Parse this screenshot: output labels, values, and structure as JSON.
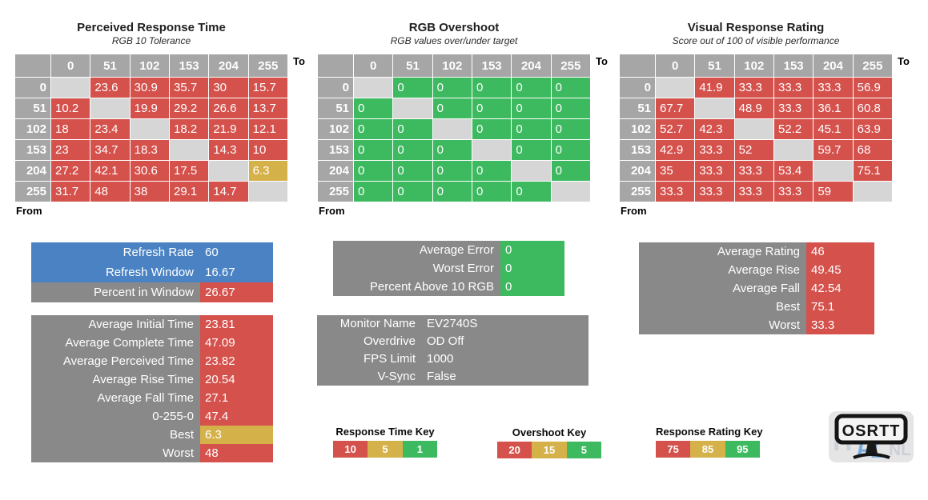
{
  "colors": {
    "red": "#d4514c",
    "yellow": "#d5b14a",
    "green": "#3dba5f",
    "blue": "#4a82c3",
    "header_gray": "#a6a6a6",
    "diagonal_gray": "#d6d6d6",
    "box_gray": "#898989"
  },
  "axis": {
    "to_label": "To",
    "from_label": "From",
    "levels": [
      "0",
      "51",
      "102",
      "153",
      "204",
      "255"
    ]
  },
  "matrices": [
    {
      "title": "Perceived Response Time",
      "subtitle": "RGB 10 Tolerance",
      "default_color": "red",
      "rows": [
        [
          "",
          "23.6",
          "30.9",
          "35.7",
          "30",
          "15.7"
        ],
        [
          "10.2",
          "",
          "19.9",
          "29.2",
          "26.6",
          "13.7"
        ],
        [
          "18",
          "23.4",
          "",
          "18.2",
          "21.9",
          "12.1"
        ],
        [
          "23",
          "34.7",
          "18.3",
          "",
          "14.3",
          "10"
        ],
        [
          "27.2",
          "42.1",
          "30.6",
          "17.5",
          "",
          "6.3"
        ],
        [
          "31.7",
          "48",
          "38",
          "29.1",
          "14.7",
          ""
        ]
      ],
      "cell_color_overrides": {
        "4,5": "yellow"
      }
    },
    {
      "title": "RGB Overshoot",
      "subtitle": "RGB values over/under target",
      "default_color": "green",
      "rows": [
        [
          "",
          "0",
          "0",
          "0",
          "0",
          "0"
        ],
        [
          "0",
          "",
          "0",
          "0",
          "0",
          "0"
        ],
        [
          "0",
          "0",
          "",
          "0",
          "0",
          "0"
        ],
        [
          "0",
          "0",
          "0",
          "",
          "0",
          "0"
        ],
        [
          "0",
          "0",
          "0",
          "0",
          "",
          "0"
        ],
        [
          "0",
          "0",
          "0",
          "0",
          "0",
          ""
        ]
      ],
      "cell_color_overrides": {}
    },
    {
      "title": "Visual Response Rating",
      "subtitle": "Score out of 100 of visible performance",
      "default_color": "red",
      "rows": [
        [
          "",
          "41.9",
          "33.3",
          "33.3",
          "33.3",
          "56.9"
        ],
        [
          "67.7",
          "",
          "48.9",
          "33.3",
          "36.1",
          "60.8"
        ],
        [
          "52.7",
          "42.3",
          "",
          "52.2",
          "45.1",
          "63.9"
        ],
        [
          "42.9",
          "33.3",
          "52",
          "",
          "59.7",
          "68"
        ],
        [
          "35",
          "33.3",
          "33.3",
          "53.4",
          "",
          "75.1"
        ],
        [
          "33.3",
          "33.3",
          "33.3",
          "33.3",
          "59",
          ""
        ]
      ],
      "cell_color_overrides": {}
    }
  ],
  "boxes": {
    "refresh": {
      "rows": [
        {
          "label": "Refresh Rate",
          "value": "60",
          "label_bg": "blue",
          "value_bg": "blue"
        },
        {
          "label": "Refresh Window",
          "value": "16.67",
          "label_bg": "blue",
          "value_bg": "blue"
        },
        {
          "label": "Percent in Window",
          "value": "26.67",
          "label_bg": "box_gray",
          "value_bg": "red"
        }
      ]
    },
    "averages": {
      "rows": [
        {
          "label": "Average Initial Time",
          "value": "23.81",
          "label_bg": "box_gray",
          "value_bg": "red"
        },
        {
          "label": "Average Complete Time",
          "value": "47.09",
          "label_bg": "box_gray",
          "value_bg": "red"
        },
        {
          "label": "Average Perceived Time",
          "value": "23.82",
          "label_bg": "box_gray",
          "value_bg": "red"
        },
        {
          "label": "Average Rise Time",
          "value": "20.54",
          "label_bg": "box_gray",
          "value_bg": "red"
        },
        {
          "label": "Average Fall Time",
          "value": "27.1",
          "label_bg": "box_gray",
          "value_bg": "red"
        },
        {
          "label": "0-255-0",
          "value": "47.4",
          "label_bg": "box_gray",
          "value_bg": "red"
        },
        {
          "label": "Best",
          "value": "6.3",
          "label_bg": "box_gray",
          "value_bg": "yellow"
        },
        {
          "label": "Worst",
          "value": "48",
          "label_bg": "box_gray",
          "value_bg": "red"
        }
      ]
    },
    "error": {
      "rows": [
        {
          "label": "Average Error",
          "value": "0",
          "label_bg": "box_gray",
          "value_bg": "green"
        },
        {
          "label": "Worst Error",
          "value": "0",
          "label_bg": "box_gray",
          "value_bg": "green"
        },
        {
          "label": "Percent Above 10 RGB",
          "value": "0",
          "label_bg": "box_gray",
          "value_bg": "green"
        }
      ]
    },
    "monitor": {
      "rows": [
        {
          "label": "Monitor Name",
          "value": "EV2740S",
          "label_bg": "box_gray",
          "value_bg": "box_gray"
        },
        {
          "label": "Overdrive",
          "value": "OD Off",
          "label_bg": "box_gray",
          "value_bg": "box_gray"
        },
        {
          "label": "FPS Limit",
          "value": "1000",
          "label_bg": "box_gray",
          "value_bg": "box_gray"
        },
        {
          "label": "V-Sync",
          "value": "False",
          "label_bg": "box_gray",
          "value_bg": "box_gray"
        }
      ]
    },
    "rating": {
      "rows": [
        {
          "label": "Average Rating",
          "value": "46",
          "label_bg": "box_gray",
          "value_bg": "red"
        },
        {
          "label": "Average Rise",
          "value": "49.45",
          "label_bg": "box_gray",
          "value_bg": "red"
        },
        {
          "label": "Average Fall",
          "value": "42.54",
          "label_bg": "box_gray",
          "value_bg": "red"
        },
        {
          "label": "Best",
          "value": "75.1",
          "label_bg": "box_gray",
          "value_bg": "red"
        },
        {
          "label": "Worst",
          "value": "33.3",
          "label_bg": "box_gray",
          "value_bg": "red"
        }
      ]
    }
  },
  "keys": [
    {
      "title": "Response Time Key",
      "segments": [
        {
          "value": "10",
          "color": "red"
        },
        {
          "value": "5",
          "color": "yellow"
        },
        {
          "value": "1",
          "color": "green"
        }
      ]
    },
    {
      "title": "Overshoot Key",
      "segments": [
        {
          "value": "20",
          "color": "red"
        },
        {
          "value": "15",
          "color": "yellow"
        },
        {
          "value": "5",
          "color": "green"
        }
      ]
    },
    {
      "title": "Response Rating Key",
      "segments": [
        {
          "value": "75",
          "color": "red"
        },
        {
          "value": "85",
          "color": "yellow"
        },
        {
          "value": "95",
          "color": "green"
        }
      ]
    }
  ],
  "logo": {
    "text": "OSRTT",
    "watermark_left": "H",
    "watermark_mid": "FL",
    "watermark_right": "NL"
  }
}
